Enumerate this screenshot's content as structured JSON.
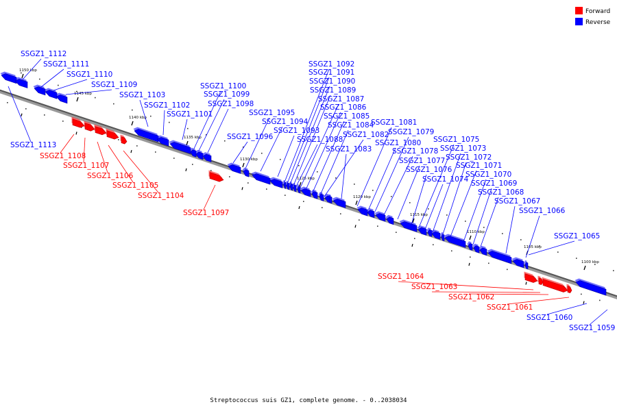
{
  "legend": [
    {
      "label": "Forward",
      "color": "#ff0000"
    },
    {
      "label": "Reverse",
      "color": "#0000ff"
    }
  ],
  "caption": "Streptococcus suis GZ1, complete genome. - 0..2038034",
  "ticks": [
    "1150 kbp",
    "1145 kbp",
    "1140 kbp",
    "1135 kbp",
    "1130 kbp",
    "1125 kbp",
    "1120 kbp",
    "1115 kbp",
    "1110 kbp",
    "1105 kbp",
    "1100 kbp"
  ],
  "genes": [
    {
      "name": "SSGZ1_1113",
      "strand": "Reverse"
    },
    {
      "name": "SSGZ1_1112",
      "strand": "Reverse"
    },
    {
      "name": "SSGZ1_1111",
      "strand": "Reverse"
    },
    {
      "name": "SSGZ1_1110",
      "strand": "Reverse"
    },
    {
      "name": "SSGZ1_1109",
      "strand": "Reverse"
    },
    {
      "name": "SSGZ1_1108",
      "strand": "Forward"
    },
    {
      "name": "SSGZ1_1107",
      "strand": "Forward"
    },
    {
      "name": "SSGZ1_1106",
      "strand": "Forward"
    },
    {
      "name": "SSGZ1_1105",
      "strand": "Forward"
    },
    {
      "name": "SSGZ1_1104",
      "strand": "Forward"
    },
    {
      "name": "SSGZ1_1103",
      "strand": "Reverse"
    },
    {
      "name": "SSGZ1_1102",
      "strand": "Reverse"
    },
    {
      "name": "SSGZ1_1101",
      "strand": "Reverse"
    },
    {
      "name": "SSGZ1_1100",
      "strand": "Reverse"
    },
    {
      "name": "SSGZ1_1099",
      "strand": "Reverse"
    },
    {
      "name": "SSGZ1_1098",
      "strand": "Reverse"
    },
    {
      "name": "SSGZ1_1097",
      "strand": "Forward"
    },
    {
      "name": "SSGZ1_1096",
      "strand": "Reverse"
    },
    {
      "name": "SSGZ1_1095",
      "strand": "Reverse"
    },
    {
      "name": "SSGZ1_1094",
      "strand": "Reverse"
    },
    {
      "name": "SSGZ1_1093",
      "strand": "Reverse"
    },
    {
      "name": "SSGZ1_1092",
      "strand": "Reverse"
    },
    {
      "name": "SSGZ1_1091",
      "strand": "Reverse"
    },
    {
      "name": "SSGZ1_1090",
      "strand": "Reverse"
    },
    {
      "name": "SSGZ1_1089",
      "strand": "Reverse"
    },
    {
      "name": "SSGZ1_1088",
      "strand": "Reverse"
    },
    {
      "name": "SSGZ1_1087",
      "strand": "Reverse"
    },
    {
      "name": "SSGZ1_1086",
      "strand": "Reverse"
    },
    {
      "name": "SSGZ1_1085",
      "strand": "Reverse"
    },
    {
      "name": "SSGZ1_1084",
      "strand": "Reverse"
    },
    {
      "name": "SSGZ1_1083",
      "strand": "Reverse"
    },
    {
      "name": "SSGZ1_1082",
      "strand": "Reverse"
    },
    {
      "name": "SSGZ1_1081",
      "strand": "Reverse"
    },
    {
      "name": "SSGZ1_1080",
      "strand": "Reverse"
    },
    {
      "name": "SSGZ1_1079",
      "strand": "Reverse"
    },
    {
      "name": "SSGZ1_1078",
      "strand": "Reverse"
    },
    {
      "name": "SSGZ1_1077",
      "strand": "Reverse"
    },
    {
      "name": "SSGZ1_1076",
      "strand": "Reverse"
    },
    {
      "name": "SSGZ1_1075",
      "strand": "Reverse"
    },
    {
      "name": "SSGZ1_1074",
      "strand": "Reverse"
    },
    {
      "name": "SSGZ1_1073",
      "strand": "Reverse"
    },
    {
      "name": "SSGZ1_1072",
      "strand": "Reverse"
    },
    {
      "name": "SSGZ1_1071",
      "strand": "Reverse"
    },
    {
      "name": "SSGZ1_1070",
      "strand": "Reverse"
    },
    {
      "name": "SSGZ1_1069",
      "strand": "Reverse"
    },
    {
      "name": "SSGZ1_1068",
      "strand": "Reverse"
    },
    {
      "name": "SSGZ1_1067",
      "strand": "Reverse"
    },
    {
      "name": "SSGZ1_1066",
      "strand": "Reverse"
    },
    {
      "name": "SSGZ1_1065",
      "strand": "Reverse"
    },
    {
      "name": "SSGZ1_1064",
      "strand": "Forward"
    },
    {
      "name": "SSGZ1_1063",
      "strand": "Forward"
    },
    {
      "name": "SSGZ1_1062",
      "strand": "Forward"
    },
    {
      "name": "SSGZ1_1061",
      "strand": "Forward"
    },
    {
      "name": "SSGZ1_1060",
      "strand": "Reverse"
    },
    {
      "name": "SSGZ1_1059",
      "strand": "Reverse"
    }
  ]
}
